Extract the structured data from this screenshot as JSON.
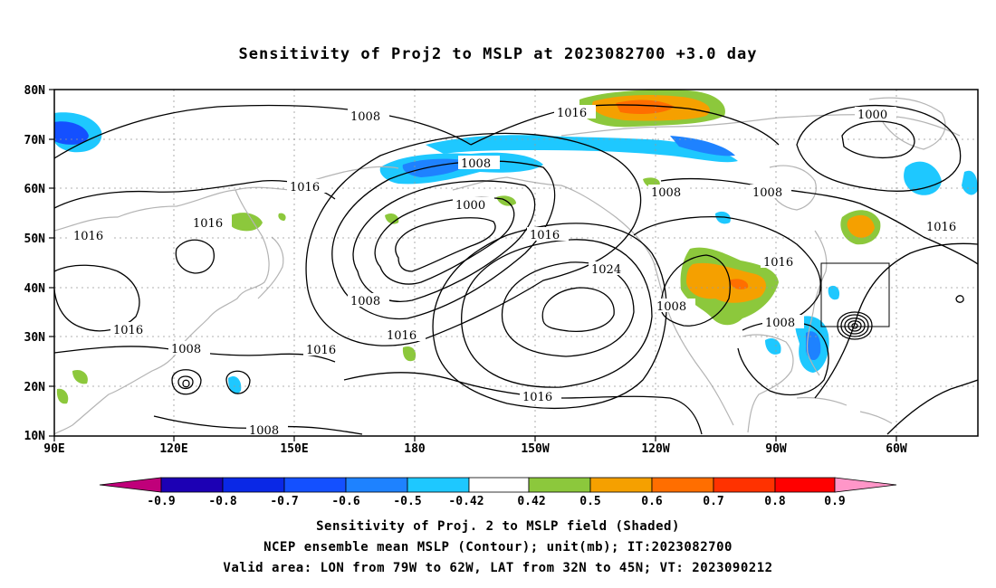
{
  "title": "Sensitivity of Proj2 to MSLP at 2023082700 +3.0 day",
  "lat_ticks": [
    "80N",
    "70N",
    "60N",
    "50N",
    "40N",
    "30N",
    "20N",
    "10N"
  ],
  "lon_ticks": [
    "90E",
    "120E",
    "150E",
    "180",
    "150W",
    "120W",
    "90W",
    "60W"
  ],
  "contour_labels": {
    "c1": "1008",
    "c2": "1016",
    "c3": "1000",
    "c4": "1008",
    "c5": "1008",
    "c6": "1016",
    "c7": "1016",
    "c8": "1000",
    "c9": "1016",
    "c10": "1016",
    "c11": "1008",
    "c12": "1008",
    "c13": "1008",
    "c14": "1016",
    "c15": "1024",
    "c16": "1008",
    "c17": "1016",
    "c18": "1008",
    "c19": "1016",
    "c20": "1016",
    "c21": "1008",
    "c22": "1016",
    "c23": "1016"
  },
  "colorbar": {
    "labels": [
      "-0.9",
      "-0.8",
      "-0.7",
      "-0.6",
      "-0.5",
      "-0.42",
      "0.42",
      "0.5",
      "0.6",
      "0.7",
      "0.8",
      "0.9"
    ],
    "colors": [
      "#c0007a",
      "#1c00b4",
      "#0a28e6",
      "#1450ff",
      "#1e82ff",
      "#1ec8ff",
      "#ffffff",
      "#8cc83c",
      "#f5a000",
      "#ff6e00",
      "#ff3200",
      "#ff0000",
      "#ff96c8"
    ]
  },
  "caption": {
    "line1": "Sensitivity of Proj. 2 to MSLP field (Shaded)",
    "line2": "NCEP ensemble mean MSLP (Contour); unit(mb); IT:2023082700",
    "line3": "Valid area: LON from 79W to 62W, LAT from 32N to 45N; VT: 2023090212"
  }
}
